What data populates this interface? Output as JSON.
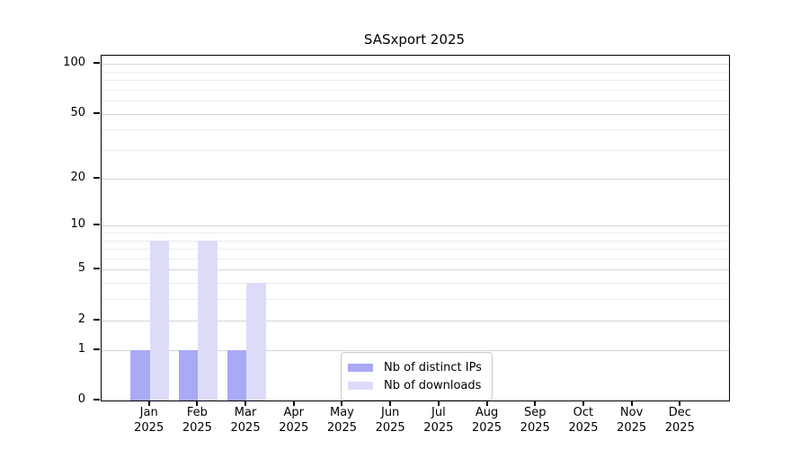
{
  "figure": {
    "background": "#ffffff"
  },
  "chart_data": {
    "type": "bar",
    "title": "SASxport 2025",
    "x_tick_labels": [
      [
        "Jan",
        "2025"
      ],
      [
        "Feb",
        "2025"
      ],
      [
        "Mar",
        "2025"
      ],
      [
        "Apr",
        "2025"
      ],
      [
        "May",
        "2025"
      ],
      [
        "Jun",
        "2025"
      ],
      [
        "Jul",
        "2025"
      ],
      [
        "Aug",
        "2025"
      ],
      [
        "Sep",
        "2025"
      ],
      [
        "Oct",
        "2025"
      ],
      [
        "Nov",
        "2025"
      ],
      [
        "Dec",
        "2025"
      ]
    ],
    "series": [
      {
        "name": "Nb of distinct IPs",
        "color": "#a9a9f5",
        "values": [
          1,
          1,
          1,
          0,
          0,
          0,
          0,
          0,
          0,
          0,
          0,
          0
        ]
      },
      {
        "name": "Nb of downloads",
        "color": "#dcdcf9",
        "values": [
          8,
          8,
          4,
          0,
          0,
          0,
          0,
          0,
          0,
          0,
          0,
          0
        ]
      }
    ],
    "y_axis": {
      "scale": "log10(1+value)",
      "tick_labels": [
        0,
        1,
        2,
        5,
        10,
        20,
        50,
        100
      ],
      "minor_gridlines": [
        3,
        4,
        6,
        7,
        8,
        9,
        30,
        40,
        60,
        70,
        80,
        90
      ],
      "max_value": 112
    },
    "legend": {
      "position": "bottom-center"
    },
    "grid": {
      "major_color": "#d4d4d4",
      "minor_color": "#ececec"
    }
  }
}
